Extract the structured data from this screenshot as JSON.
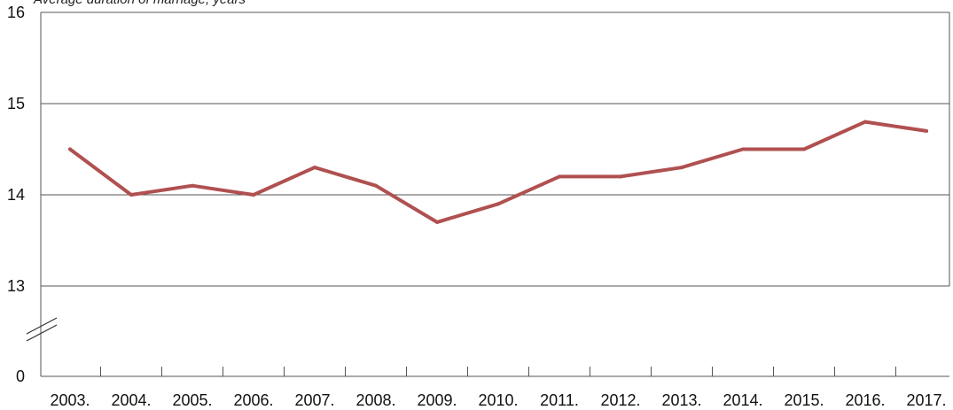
{
  "chart_data": {
    "type": "line",
    "ylabel": "Average duration of marriage, years",
    "categories": [
      "2003.",
      "2004.",
      "2005.",
      "2006.",
      "2007.",
      "2008.",
      "2009.",
      "2010.",
      "2011.",
      "2012.",
      "2013.",
      "2014.",
      "2015.",
      "2016.",
      "2017."
    ],
    "series": [
      {
        "values": [
          14.5,
          14.0,
          14.1,
          14.0,
          14.3,
          14.1,
          13.7,
          13.9,
          14.2,
          14.2,
          14.3,
          14.5,
          14.5,
          14.8,
          14.7
        ]
      }
    ],
    "yticks": [
      "16",
      "15",
      "14",
      "13",
      "0"
    ],
    "ylim": [
      13,
      16
    ],
    "axis_break": true,
    "grid": true,
    "legend": "none",
    "line_color": "#b05050",
    "grid_color": "#555555"
  }
}
